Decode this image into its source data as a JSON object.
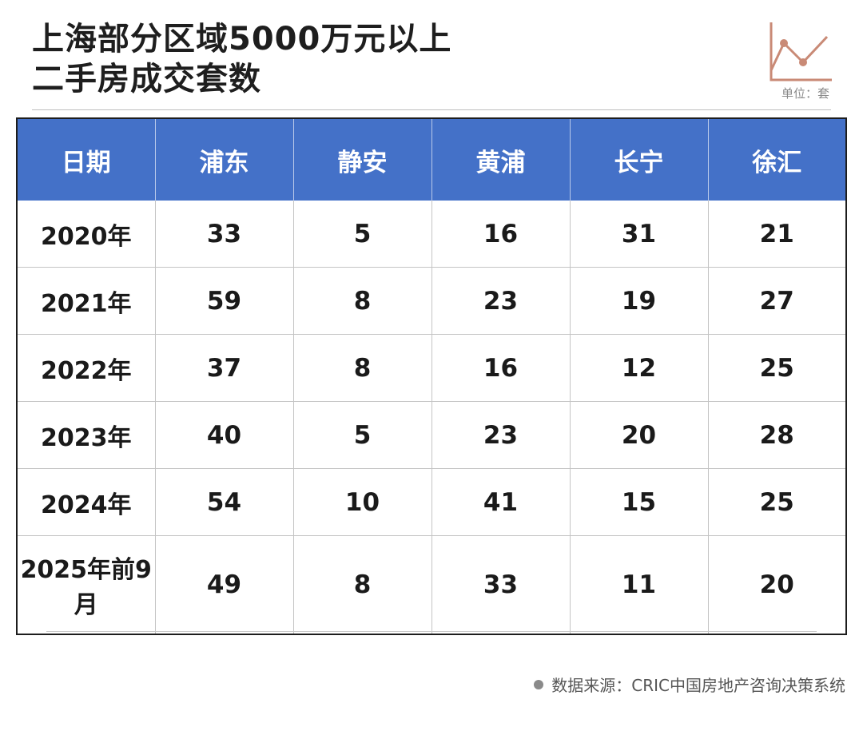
{
  "title_line1": "上海部分区域5000万元以上",
  "title_line2": "二手房成交套数",
  "unit": "单位：套",
  "source": "数据来源：CRIC中国房地产咨询决策系统",
  "colors": {
    "header_bg": "#4471c8",
    "header_text": "#ffffff",
    "logo_line": "#c98a76"
  },
  "icons": {
    "logo": "line-chart-icon",
    "source_bullet": "bullet-dot-icon"
  },
  "chart_data": {
    "type": "table",
    "columns": [
      "日期",
      "浦东",
      "静安",
      "黄浦",
      "长宁",
      "徐汇"
    ],
    "rows": [
      [
        "2020年",
        "33",
        "5",
        "16",
        "31",
        "21"
      ],
      [
        "2021年",
        "59",
        "8",
        "23",
        "19",
        "27"
      ],
      [
        "2022年",
        "37",
        "8",
        "16",
        "12",
        "25"
      ],
      [
        "2023年",
        "40",
        "5",
        "23",
        "20",
        "28"
      ],
      [
        "2024年",
        "54",
        "10",
        "41",
        "15",
        "25"
      ],
      [
        "2025年前9月",
        "49",
        "8",
        "33",
        "11",
        "20"
      ]
    ]
  }
}
